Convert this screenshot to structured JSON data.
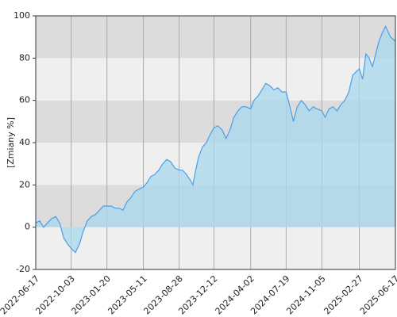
{
  "chart_data": {
    "type": "area",
    "y_label": "[Zmiany %]",
    "x": [
      "2022-06-17",
      "2022-06-29",
      "2022-07-11",
      "2022-07-23",
      "2022-08-04",
      "2022-08-17",
      "2022-08-29",
      "2022-09-10",
      "2022-09-22",
      "2022-10-03",
      "2022-10-16",
      "2022-10-28",
      "2022-11-09",
      "2022-11-21",
      "2022-12-03",
      "2022-12-16",
      "2022-12-28",
      "2023-01-09",
      "2023-01-20",
      "2023-02-02",
      "2023-02-14",
      "2023-02-26",
      "2023-03-10",
      "2023-03-22",
      "2023-04-03",
      "2023-04-16",
      "2023-04-28",
      "2023-05-11",
      "2023-05-22",
      "2023-06-03",
      "2023-06-15",
      "2023-06-27",
      "2023-07-09",
      "2023-07-21",
      "2023-08-02",
      "2023-08-15",
      "2023-08-28",
      "2023-09-07",
      "2023-09-19",
      "2023-10-02",
      "2023-10-09",
      "2023-10-16",
      "2023-10-26",
      "2023-11-07",
      "2023-11-19",
      "2023-12-01",
      "2023-12-12",
      "2023-12-24",
      "2024-01-06",
      "2024-01-18",
      "2024-01-30",
      "2024-02-11",
      "2024-02-23",
      "2024-03-06",
      "2024-03-18",
      "2024-04-02",
      "2024-04-12",
      "2024-04-24",
      "2024-05-06",
      "2024-05-18",
      "2024-05-30",
      "2024-06-11",
      "2024-06-24",
      "2024-07-06",
      "2024-07-19",
      "2024-07-29",
      "2024-08-10",
      "2024-08-22",
      "2024-09-03",
      "2024-09-15",
      "2024-09-27",
      "2024-10-09",
      "2024-10-21",
      "2024-11-05",
      "2024-11-15",
      "2024-11-27",
      "2024-12-09",
      "2024-12-21",
      "2025-01-02",
      "2025-01-14",
      "2025-01-26",
      "2025-02-07",
      "2025-02-27",
      "2025-03-09",
      "2025-03-19",
      "2025-03-29",
      "2025-04-08",
      "2025-04-18",
      "2025-04-28",
      "2025-05-08",
      "2025-05-18",
      "2025-06-02",
      "2025-06-17"
    ],
    "series": [
      {
        "color": "#4a9fe8",
        "fill": "#a8d8ee",
        "values": [
          2,
          3,
          0,
          2,
          4,
          5,
          2,
          -5,
          -8,
          -10,
          -12,
          -8,
          -2,
          3,
          5,
          6,
          8,
          10,
          10,
          10,
          9,
          9,
          8,
          12,
          14,
          17,
          18,
          19,
          21,
          24,
          25,
          27,
          30,
          32,
          31,
          28,
          27,
          27,
          25,
          22,
          20,
          26,
          33,
          38,
          40,
          44,
          47,
          48,
          46,
          42,
          46,
          52,
          55,
          57,
          57,
          56,
          60,
          62,
          65,
          68,
          67,
          65,
          66,
          64,
          64,
          58,
          50,
          57,
          60,
          58,
          55,
          57,
          56,
          55,
          52,
          56,
          57,
          55,
          58,
          60,
          64,
          72,
          75,
          70,
          82,
          80,
          76,
          82,
          88,
          92,
          95,
          90,
          88
        ]
      }
    ],
    "xlim": [
      "2022-06-17",
      "2025-06-17"
    ],
    "xticks": [
      "2022-06-17",
      "2022-10-03",
      "2023-01-20",
      "2023-05-11",
      "2023-08-28",
      "2023-12-12",
      "2024-04-02",
      "2024-07-19",
      "2024-11-05",
      "2025-02-27",
      "2025-06-17"
    ],
    "ylim": [
      -20,
      100
    ],
    "yticks": [
      -20,
      0,
      20,
      40,
      60,
      80,
      100
    ],
    "band_colors": [
      "#efefef",
      "#dcdcdc"
    ],
    "grid": true
  }
}
